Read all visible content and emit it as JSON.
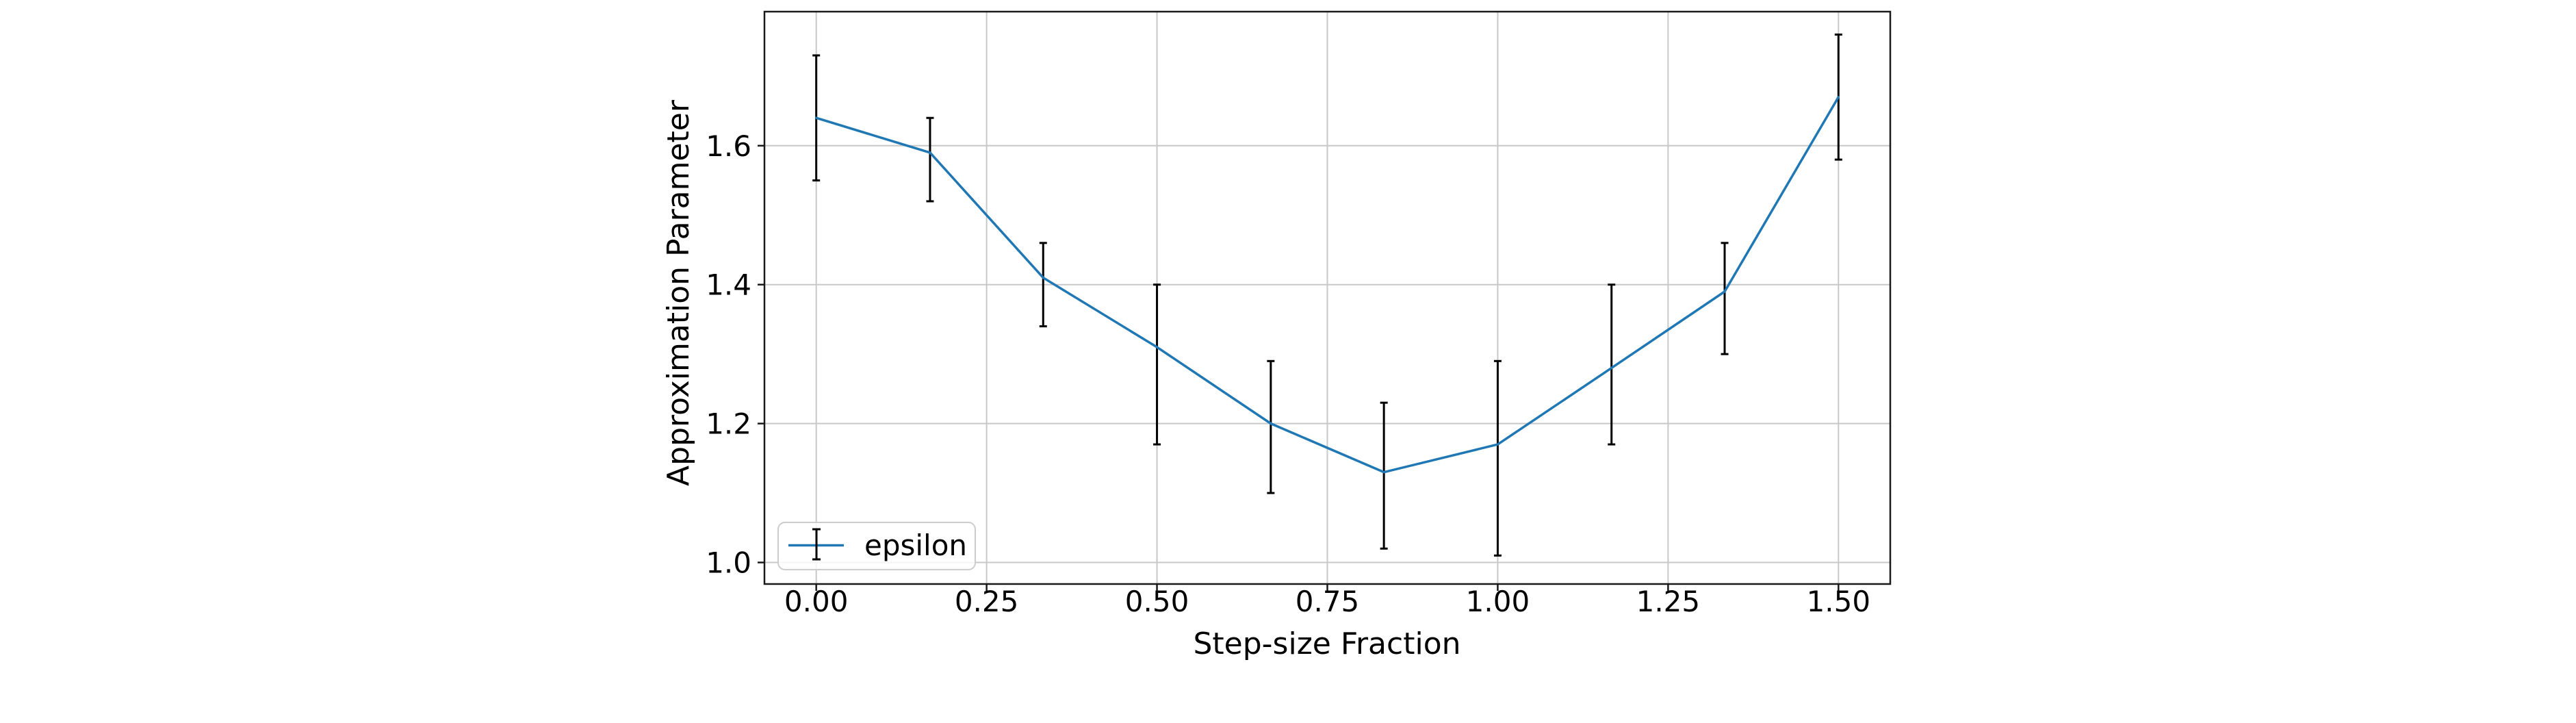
{
  "figure": {
    "xlabel": "Step-size Fraction",
    "ylabel": "Approximation Parameter",
    "legend": {
      "label": "epsilon"
    }
  },
  "chart_data": {
    "type": "line",
    "title": "",
    "xlabel": "Step-size Fraction",
    "ylabel": "Approximation Parameter",
    "legend_entries": [
      "epsilon"
    ],
    "legend_position": "lower left",
    "grid": true,
    "xlim": [
      -0.076,
      1.576
    ],
    "ylim": [
      0.969,
      1.793
    ],
    "x_tick_labels": [
      "0.00",
      "0.25",
      "0.50",
      "0.75",
      "1.00",
      "1.25",
      "1.50"
    ],
    "x_tick_values": [
      0.0,
      0.25,
      0.5,
      0.75,
      1.0,
      1.25,
      1.5
    ],
    "y_tick_labels": [
      "1.0",
      "1.2",
      "1.4",
      "1.6"
    ],
    "y_tick_values": [
      1.0,
      1.2,
      1.4,
      1.6
    ],
    "series": [
      {
        "name": "epsilon",
        "x": [
          0.0,
          0.167,
          0.333,
          0.5,
          0.667,
          0.833,
          1.0,
          1.167,
          1.333,
          1.5
        ],
        "y": [
          1.64,
          1.59,
          1.41,
          1.31,
          1.2,
          1.13,
          1.17,
          1.28,
          1.39,
          1.67
        ],
        "err_low": [
          1.55,
          1.52,
          1.34,
          1.17,
          1.1,
          1.02,
          1.01,
          1.17,
          1.3,
          1.58
        ],
        "err_high": [
          1.73,
          1.64,
          1.46,
          1.4,
          1.29,
          1.23,
          1.29,
          1.4,
          1.46,
          1.76
        ]
      }
    ],
    "colors": {
      "line": "#1f77b4",
      "error_bar": "#000000",
      "grid": "#c8c8c8",
      "spine": "#1a1a1a",
      "legend_border": "#cccccc"
    }
  }
}
